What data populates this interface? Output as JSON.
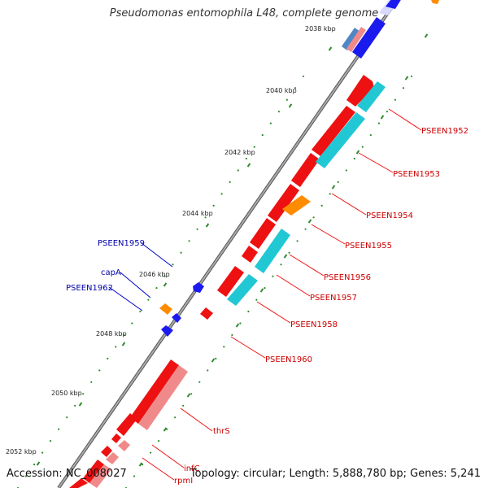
{
  "title": "Pseudomonas entomophila L48, complete genome",
  "footer": {
    "accession": "Accession: NC_008027",
    "stats": "Topology: circular; Length: 5,888,780 bp; Genes: 5,241"
  },
  "colors": {
    "backbone": "#7a7a7a",
    "tick": "#2e8b2e",
    "red": "#ee1111",
    "pink": "#f08a8a",
    "cyan": "#22c7d4",
    "orange": "#ff8c00",
    "blue": "#1a1aee",
    "label_red": "#cc0000",
    "label_blue": "#0000aa"
  },
  "axis": {
    "unit": "kbp",
    "ticks": [
      "2038 kbp",
      "2040 kbp",
      "2042 kbp",
      "2044 kbp",
      "2046 kbp",
      "2048 kbp",
      "2050 kbp",
      "2052 kbp"
    ]
  },
  "gene_labels_forward": [
    "PSEEN1952",
    "PSEEN1953",
    "PSEEN1954",
    "PSEEN1955",
    "PSEEN1956",
    "PSEEN1957",
    "PSEEN1958",
    "PSEEN1960",
    "thrS",
    "infC",
    "rpmI"
  ],
  "gene_labels_reverse": [
    "PSEEN1959",
    "capA",
    "PSEEN1962"
  ]
}
